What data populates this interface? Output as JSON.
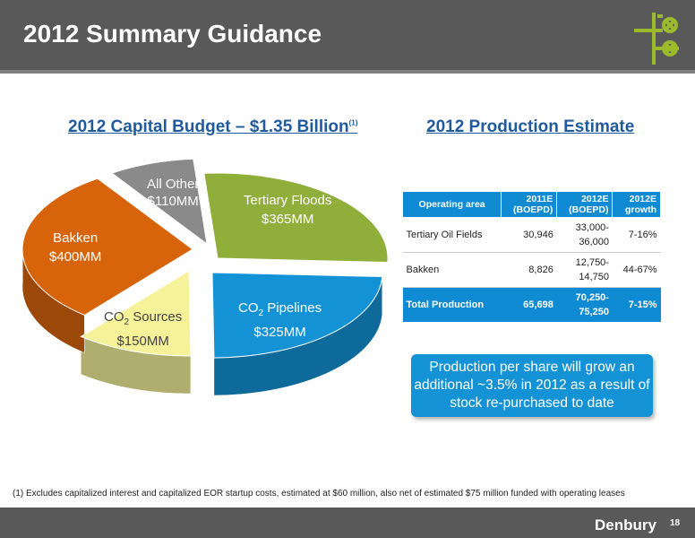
{
  "header": {
    "title": "2012 Summary Guidance"
  },
  "capital_budget": {
    "title": "2012 Capital Budget – $1.35 Billion",
    "footnote_marker": "(1)"
  },
  "production": {
    "title": "2012 Production Estimate",
    "columns": [
      "Operating area",
      "2011E (BOEPD)",
      "2012E (BOEPD)",
      "2012E growth"
    ],
    "col_lines": [
      [
        "2011E",
        "(BOEPD)"
      ],
      [
        "2012E",
        "(BOEPD)"
      ],
      [
        "2012E",
        "growth"
      ]
    ],
    "rows": [
      {
        "area": "Tertiary Oil Fields",
        "y2011": "30,946",
        "y2012": [
          "33,000-",
          "36,000"
        ],
        "growth": "7-16%"
      },
      {
        "area": "Bakken",
        "y2011": "8,826",
        "y2012": [
          "12,750-",
          "14,750"
        ],
        "growth": "44-67%"
      }
    ],
    "total": {
      "area": "Total Production",
      "y2011": "65,698",
      "y2012": [
        "70,250-",
        "75,250"
      ],
      "growth": "7-15%"
    }
  },
  "callout": {
    "text": "Production per share will grow an additional ~3.5% in 2012 as a result of stock re-purchased to date"
  },
  "footnote": {
    "text": "(1)   Excludes capitalized interest and capitalized EOR startup costs, estimated at $60 million, also net of estimated $75 million funded with operating leases"
  },
  "footer": {
    "brand": "Denbury",
    "page": "18"
  },
  "chart_data": {
    "type": "pie",
    "title": "2012 Capital Budget – $1.35 Billion",
    "slices": [
      {
        "name": "Tertiary Floods",
        "value": 365,
        "label": "$365MM",
        "color": "#8fae3a"
      },
      {
        "name": "CO2 Pipelines",
        "value": 325,
        "label": "$325MM",
        "color": "#1393d6"
      },
      {
        "name": "CO2 Sources",
        "value": 150,
        "label": "$150MM",
        "color": "#f5f299"
      },
      {
        "name": "Bakken",
        "value": 400,
        "label": "$400MM",
        "color": "#d7640b"
      },
      {
        "name": "All Other",
        "value": 110,
        "label": "$110MM",
        "color": "#8a8a8a"
      }
    ],
    "labels": {
      "tertiary": {
        "line1": "Tertiary Floods",
        "line2": "$365MM"
      },
      "pipelines": {
        "line1a": "CO",
        "sub": "2",
        "line1b": " Pipelines",
        "line2": "$325MM"
      },
      "sources": {
        "line1a": "CO",
        "sub": "2",
        "line1b": " Sources",
        "line2": "$150MM"
      },
      "bakken": {
        "line1": "Bakken",
        "line2": "$400MM"
      },
      "other": {
        "line1": "All Other",
        "line2": "$110MM"
      }
    }
  }
}
